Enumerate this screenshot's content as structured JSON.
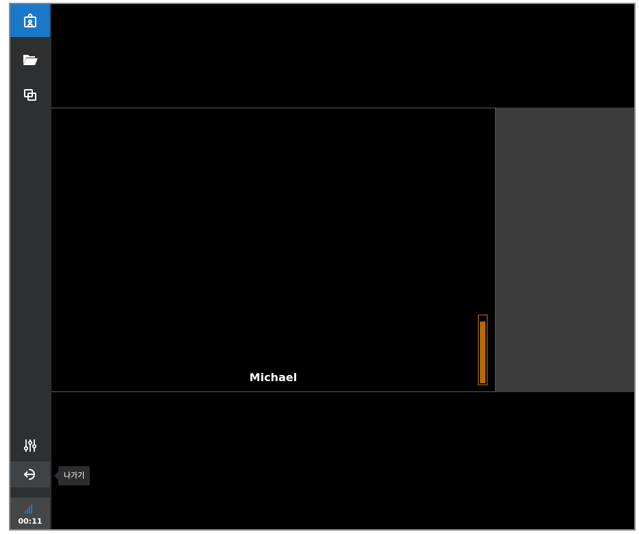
{
  "sidebar": {
    "items": [
      {
        "name": "presenter",
        "icon": "presenter-icon",
        "active": true
      },
      {
        "name": "open-folder",
        "icon": "folder-open-icon",
        "active": false
      },
      {
        "name": "layout",
        "icon": "windows-icon",
        "active": false
      }
    ],
    "settings_icon": "sliders-icon",
    "exit_icon": "exit-icon",
    "exit_tooltip": "나가기",
    "signal_icon": "signal-bars-icon",
    "elapsed_time": "00:11"
  },
  "main": {
    "participant_name": "Michael",
    "audio_level": 0.93
  },
  "colors": {
    "accent": "#1b78c8",
    "sidebar_bg": "#2d2f30",
    "side_panel_bg": "#3a3b3a",
    "volume_meter": "#c47a10"
  }
}
